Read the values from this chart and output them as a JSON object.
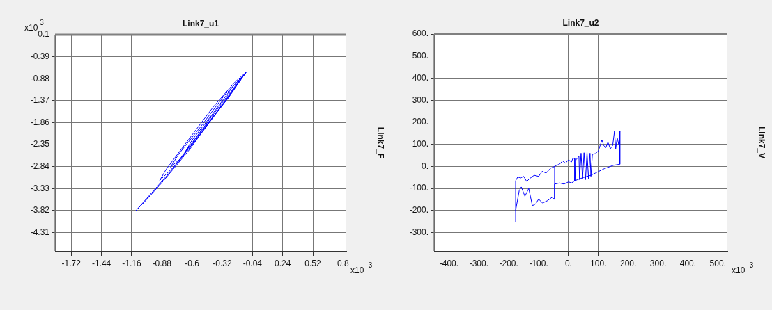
{
  "chart_data": [
    {
      "type": "line",
      "title": "Link7_u1",
      "ylabel": "Link7_F",
      "xlabel": "x10$^{-3}$",
      "annotations": [
        "x10$^{3}$"
      ],
      "xlim": [
        -1.87,
        0.83
      ],
      "xticks": [
        -1.72,
        -1.44,
        -1.16,
        -0.88,
        -0.6,
        -0.32,
        -0.04,
        0.24,
        0.52,
        0.8
      ],
      "ylim": [
        -4.72,
        0.1
      ],
      "yticks": [
        0.1,
        -0.39,
        -0.88,
        -1.37,
        -1.86,
        -2.35,
        -2.84,
        -3.33,
        -3.82,
        -4.31
      ],
      "grid": true,
      "legend": false,
      "series": [
        {
          "color": "#0000ff",
          "x": [
            -0.1,
            -0.35,
            -0.62,
            -0.88,
            -1.05,
            -1.12,
            -1.02,
            -0.8,
            -0.55,
            -0.3,
            -0.1,
            -0.3,
            -0.55,
            -0.75,
            -0.9,
            -0.84,
            -0.62,
            -0.4,
            -0.2,
            -0.1,
            -0.28,
            -0.5,
            -0.7,
            -0.8,
            -0.72,
            -0.52,
            -0.3,
            -0.12,
            -0.26,
            -0.48,
            -0.66,
            -0.6,
            -0.42,
            -0.22,
            -0.12
          ],
          "values": [
            -0.74,
            -1.55,
            -2.45,
            -3.2,
            -3.65,
            -3.82,
            -3.55,
            -2.95,
            -2.15,
            -1.35,
            -0.74,
            -1.4,
            -2.2,
            -2.8,
            -3.15,
            -2.9,
            -2.2,
            -1.5,
            -0.95,
            -0.74,
            -1.35,
            -2.05,
            -2.65,
            -2.85,
            -2.55,
            -1.95,
            -1.25,
            -0.8,
            -1.3,
            -1.95,
            -2.5,
            -2.25,
            -1.7,
            -1.05,
            -0.8
          ]
        }
      ]
    },
    {
      "type": "line",
      "title": "Link7_u2",
      "ylabel": "Link7_V",
      "xlabel": "x10$^{-3}$",
      "xlim": [
        -450,
        532
      ],
      "xticks": [
        {
          "value": -400,
          "label": "-400."
        },
        {
          "value": -300,
          "label": "-300."
        },
        {
          "value": -200,
          "label": "-200."
        },
        {
          "value": -100,
          "label": "-100."
        },
        {
          "value": 0,
          "label": "0."
        },
        {
          "value": 100,
          "label": "100."
        },
        {
          "value": 200,
          "label": "200."
        },
        {
          "value": 300,
          "label": "300."
        },
        {
          "value": 400,
          "label": "400."
        },
        {
          "value": 500,
          "label": "500."
        }
      ],
      "ylim": [
        -383,
        600
      ],
      "yticks": [
        {
          "value": 600,
          "label": "600."
        },
        {
          "value": 500,
          "label": "500."
        },
        {
          "value": 400,
          "label": "400."
        },
        {
          "value": 300,
          "label": "300."
        },
        {
          "value": 200,
          "label": "200."
        },
        {
          "value": 100,
          "label": "100."
        },
        {
          "value": 0,
          "label": "0."
        },
        {
          "value": -100,
          "label": "-100."
        },
        {
          "value": -200,
          "label": "-200."
        },
        {
          "value": -300,
          "label": "-300."
        }
      ],
      "grid": true,
      "legend": false,
      "series": [
        {
          "color": "#0000ff",
          "x": [
            -177,
            -177,
            -170,
            -160,
            -150,
            -140,
            -130,
            -115,
            -100,
            -88,
            -75,
            -60,
            -46,
            -46,
            -46,
            -30,
            -20,
            -10,
            0,
            10,
            15,
            21,
            21,
            25,
            35,
            37,
            42,
            47,
            52,
            57,
            62,
            67,
            72,
            75,
            80,
            90,
            100,
            112,
            118,
            125,
            132,
            140,
            148,
            154,
            158,
            163,
            168,
            172,
            172,
            150,
            120,
            90,
            75,
            50,
            30,
            21,
            10,
            0,
            -15,
            -30,
            -46,
            -46,
            -55,
            -70,
            -87,
            -100,
            -110,
            -121,
            -133,
            -146,
            -158,
            -165,
            -177
          ],
          "values": [
            -251,
            -65,
            -48,
            -52,
            -45,
            -68,
            -55,
            -40,
            -45,
            -22,
            -30,
            -8,
            0,
            -150,
            2,
            10,
            25,
            15,
            30,
            20,
            38,
            35,
            -65,
            30,
            45,
            -60,
            60,
            -55,
            62,
            -60,
            65,
            -55,
            60,
            -45,
            55,
            58,
            70,
            120,
            95,
            85,
            110,
            80,
            95,
            160,
            80,
            130,
            100,
            160,
            10,
            5,
            -10,
            -30,
            -40,
            -50,
            -60,
            -65,
            -75,
            -70,
            -80,
            -75,
            -80,
            -150,
            -140,
            -155,
            -166,
            -148,
            -170,
            -178,
            -100,
            -135,
            -93,
            -110,
            -200
          ]
        }
      ]
    }
  ]
}
